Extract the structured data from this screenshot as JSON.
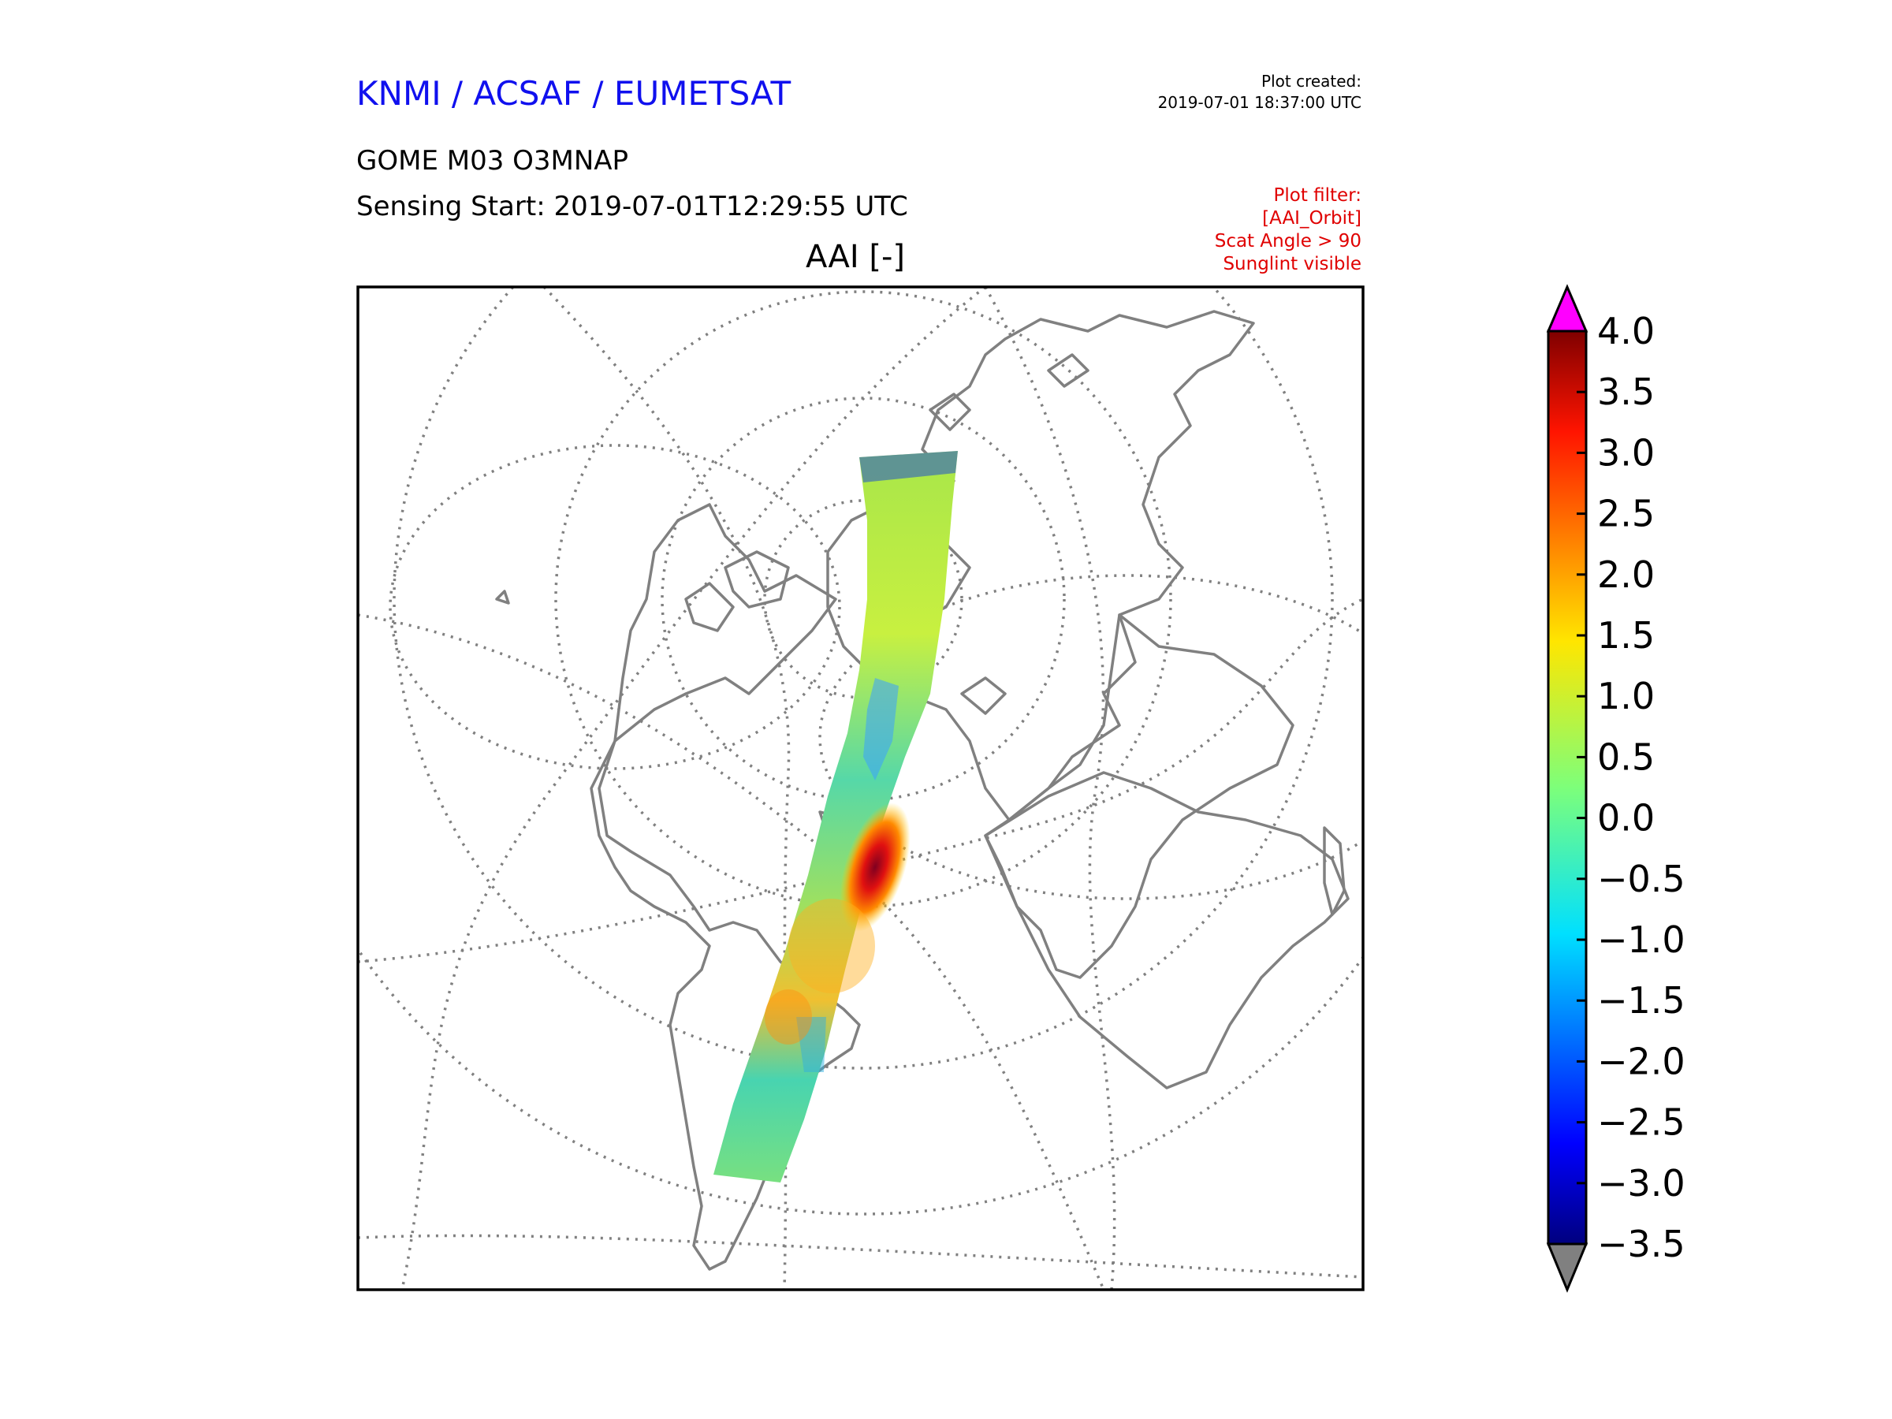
{
  "header": {
    "organization": "KNMI / ACSAF / EUMETSAT",
    "plot_created_label": "Plot created:",
    "plot_created_time": "2019-07-01 18:37:00 UTC",
    "product": "GOME M03 O3MNAP",
    "sensing_start": "Sensing Start: 2019-07-01T12:29:55 UTC",
    "filter_lines": [
      "Plot filter:",
      "[AAI_Orbit]",
      "Scat Angle > 90",
      "Sunglint visible"
    ],
    "map_title": "AAI [-]"
  },
  "map": {
    "projection": "north-polar orthographic",
    "grid": "dotted",
    "coastline_color": "#808080",
    "swath_feature": "high AAI plume over Atlantic (red/dark red)"
  },
  "colorbar": {
    "min": -3.5,
    "max": 4.0,
    "colormap": "jet",
    "over_color": "#ff00ff",
    "under_color": "#808080",
    "ticks": [
      "4.0",
      "3.5",
      "3.0",
      "2.5",
      "2.0",
      "1.5",
      "1.0",
      "0.5",
      "0.0",
      "−0.5",
      "−1.0",
      "−1.5",
      "−2.0",
      "−2.5",
      "−3.0",
      "−3.5"
    ]
  }
}
